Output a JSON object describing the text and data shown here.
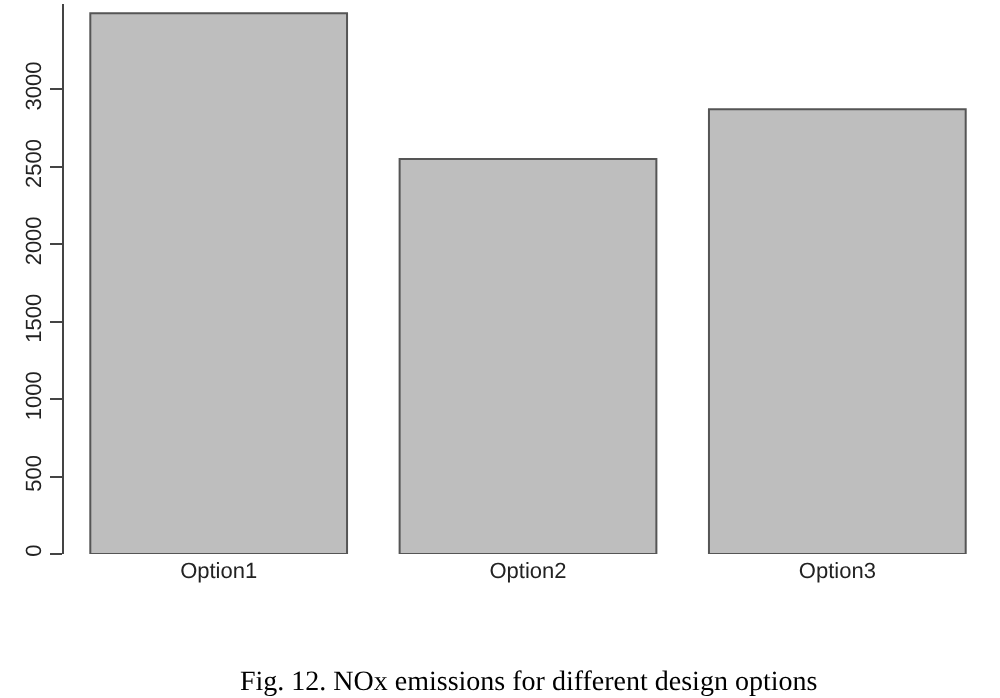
{
  "chart_data": {
    "type": "bar",
    "categories": [
      "Option1",
      "Option2",
      "Option3"
    ],
    "values": [
      3490,
      2550,
      2870
    ],
    "color": "#bebebe",
    "ylim": [
      0,
      3550
    ],
    "yticks": [
      0,
      500,
      1000,
      1500,
      2000,
      2500,
      3000
    ],
    "grid": false,
    "annotations": [
      "Fig. 12. NOx emissions for different design options"
    ]
  }
}
